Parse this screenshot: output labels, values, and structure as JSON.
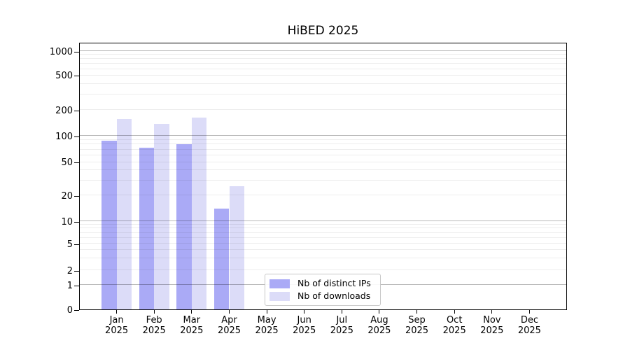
{
  "chart_data": {
    "type": "bar",
    "title": "HiBED 2025",
    "categories": [
      "Jan 2025",
      "Feb 2025",
      "Mar 2025",
      "Apr 2025",
      "May 2025",
      "Jun 2025",
      "Jul 2025",
      "Aug 2025",
      "Sep 2025",
      "Oct 2025",
      "Nov 2025",
      "Dec 2025"
    ],
    "series": [
      {
        "name": "Nb of distinct IPs",
        "color": "#aaaaf6",
        "values": [
          89,
          74,
          80,
          14,
          0,
          0,
          0,
          0,
          0,
          0,
          0,
          0
        ]
      },
      {
        "name": "Nb of downloads",
        "color": "#dcdcf8",
        "values": [
          157,
          138,
          164,
          26,
          0,
          0,
          0,
          0,
          0,
          0,
          0,
          0
        ]
      }
    ],
    "xlabel": "",
    "ylabel": "",
    "yscale": "symlog",
    "ylim": [
      0,
      1000
    ],
    "y_ticks": [
      0,
      1,
      2,
      5,
      10,
      20,
      50,
      100,
      200,
      500,
      1000
    ],
    "grid": "horizontal",
    "legend_position": "lower center"
  },
  "axes": {
    "y_tick_labels": [
      "0",
      "1",
      "2",
      "5",
      "10",
      "20",
      "50",
      "100",
      "200",
      "500",
      "1000"
    ],
    "x_tick_labels": [
      {
        "month": "Jan",
        "year": "2025"
      },
      {
        "month": "Feb",
        "year": "2025"
      },
      {
        "month": "Mar",
        "year": "2025"
      },
      {
        "month": "Apr",
        "year": "2025"
      },
      {
        "month": "May",
        "year": "2025"
      },
      {
        "month": "Jun",
        "year": "2025"
      },
      {
        "month": "Jul",
        "year": "2025"
      },
      {
        "month": "Aug",
        "year": "2025"
      },
      {
        "month": "Sep",
        "year": "2025"
      },
      {
        "month": "Oct",
        "year": "2025"
      },
      {
        "month": "Nov",
        "year": "2025"
      },
      {
        "month": "Dec",
        "year": "2025"
      }
    ]
  }
}
